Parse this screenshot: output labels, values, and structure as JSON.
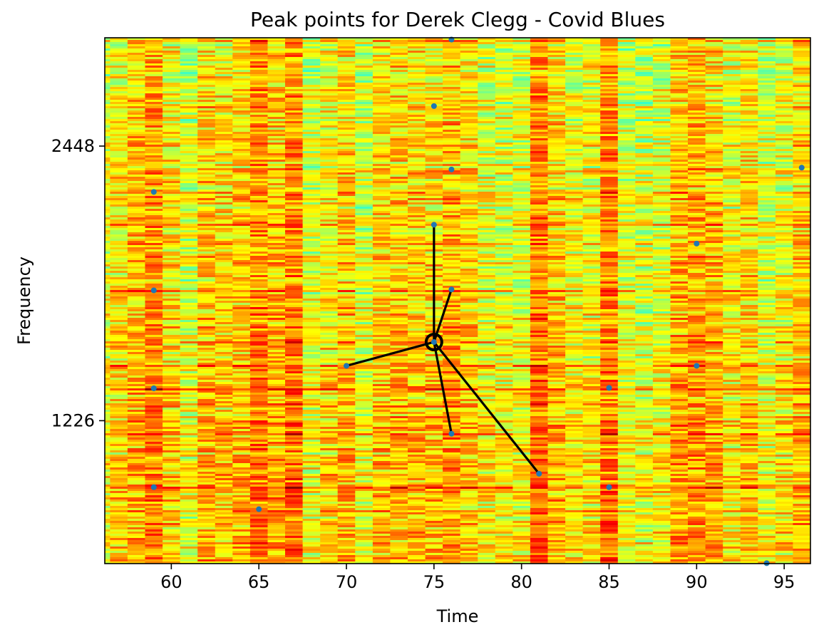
{
  "chart_data": {
    "type": "scatter",
    "title": "Peak points for Derek Clegg - Covid Blues",
    "xlabel": "Time",
    "ylabel": "Frequency",
    "xlim": [
      56.2,
      96.5
    ],
    "ylim": [
      590,
      2930
    ],
    "x_ticks": [
      60,
      65,
      70,
      75,
      80,
      85,
      90,
      95
    ],
    "y_ticks": [
      1226,
      2448
    ],
    "background": "spectrogram heatmap (jet colormap, yellow/orange/red with cyan-green)",
    "peak_color": "#1f77b4",
    "link_color": "#000000",
    "anchor": {
      "x": 75,
      "y": 1576
    },
    "peaks": [
      {
        "x": 59,
        "y": 2244
      },
      {
        "x": 59,
        "y": 1806
      },
      {
        "x": 59,
        "y": 1370
      },
      {
        "x": 59,
        "y": 930
      },
      {
        "x": 65,
        "y": 832
      },
      {
        "x": 70,
        "y": 1470
      },
      {
        "x": 75,
        "y": 2626
      },
      {
        "x": 75,
        "y": 2098
      },
      {
        "x": 75,
        "y": 1576
      },
      {
        "x": 76,
        "y": 2922
      },
      {
        "x": 76,
        "y": 2344
      },
      {
        "x": 76,
        "y": 1810
      },
      {
        "x": 76,
        "y": 1168
      },
      {
        "x": 81,
        "y": 990
      },
      {
        "x": 85,
        "y": 1372
      },
      {
        "x": 85,
        "y": 930
      },
      {
        "x": 90,
        "y": 2014
      },
      {
        "x": 90,
        "y": 1470
      },
      {
        "x": 94,
        "y": 592
      },
      {
        "x": 96,
        "y": 2352
      }
    ],
    "links": [
      {
        "x": 75,
        "y": 2098
      },
      {
        "x": 76,
        "y": 1810
      },
      {
        "x": 70,
        "y": 1470
      },
      {
        "x": 76,
        "y": 1168
      },
      {
        "x": 81,
        "y": 990
      }
    ]
  }
}
